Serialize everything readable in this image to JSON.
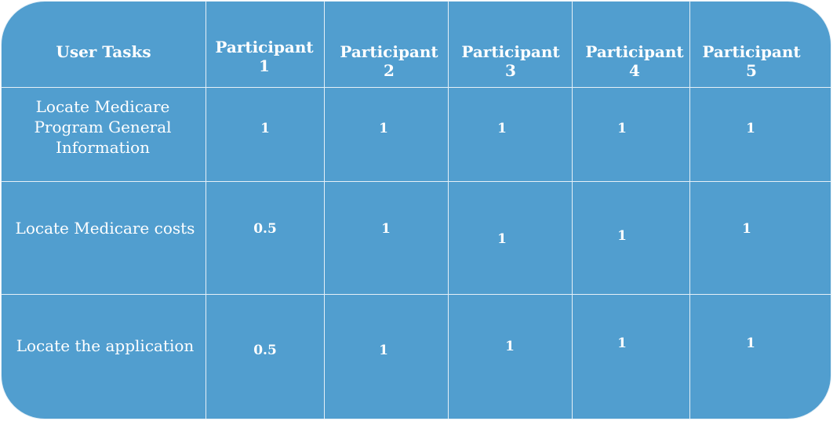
{
  "table": {
    "headers": [
      "User Tasks",
      "Participant 1",
      "Participant 2",
      "Participant 3",
      "Participant 4",
      "Participant 5"
    ],
    "rows": [
      {
        "task": "Locate Medicare Program General Information",
        "scores": [
          "1",
          "1",
          "1",
          "1",
          "1"
        ]
      },
      {
        "task": "Locate Medicare costs",
        "scores": [
          "0.5",
          "1",
          "1",
          "1",
          "1"
        ]
      },
      {
        "task": "Locate the application",
        "scores": [
          "0.5",
          "1",
          "1",
          "1",
          "1"
        ]
      }
    ]
  },
  "colors": {
    "background": "#519ecf",
    "grid": "#e6f0f7",
    "text": "#ffffff"
  }
}
